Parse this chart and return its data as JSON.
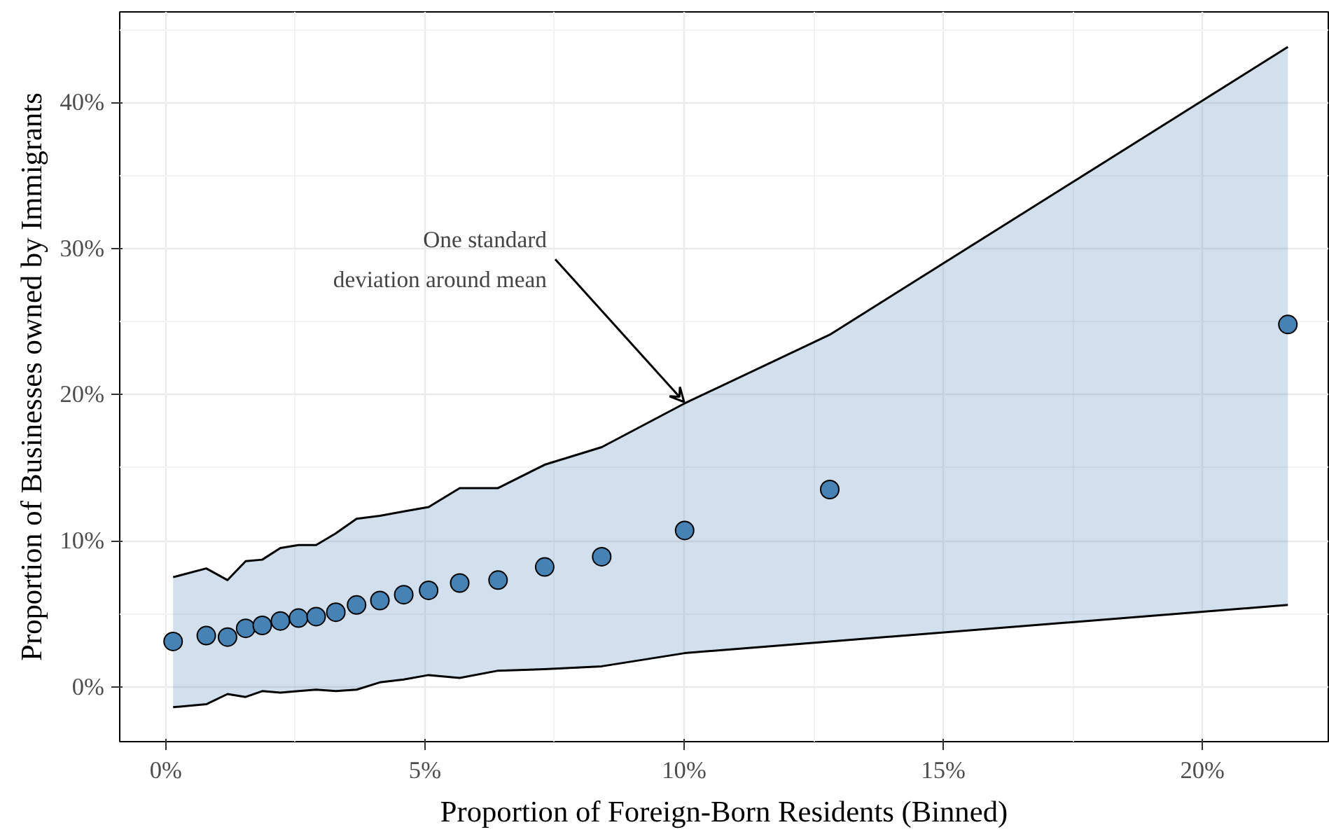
{
  "chart_data": {
    "type": "scatter",
    "xlabel": "Proportion of Foreign-Born Residents (Binned)",
    "ylabel": "Proportion of Businesses owned by Immigrants",
    "x": [
      0.14,
      0.78,
      1.19,
      1.54,
      1.86,
      2.21,
      2.56,
      2.9,
      3.28,
      3.68,
      4.13,
      4.59,
      5.07,
      5.67,
      6.41,
      7.31,
      8.41,
      10.01,
      12.81,
      21.65
    ],
    "series": [
      {
        "color": "#4682b4",
        "marker": "circle",
        "values": [
          3.1,
          3.5,
          3.4,
          4.0,
          4.2,
          4.5,
          4.7,
          4.8,
          5.1,
          5.6,
          5.9,
          6.3,
          6.6,
          7.1,
          7.3,
          8.2,
          8.9,
          10.7,
          13.5,
          24.8
        ],
        "upper": [
          7.5,
          8.1,
          7.3,
          8.6,
          8.7,
          9.5,
          9.7,
          9.7,
          10.5,
          11.5,
          11.7,
          12.0,
          12.3,
          13.6,
          13.6,
          15.2,
          16.4,
          19.4,
          24.1,
          43.8
        ],
        "lower": [
          -1.4,
          -1.2,
          -0.5,
          -0.7,
          -0.3,
          -0.4,
          -0.3,
          -0.2,
          -0.3,
          -0.2,
          0.3,
          0.5,
          0.8,
          0.6,
          1.1,
          1.2,
          1.4,
          2.3,
          3.1,
          5.6
        ]
      },
      {
        "type": "line",
        "color": "#000000",
        "values": [
          7.5,
          8.1,
          7.3,
          8.6,
          8.7,
          9.5,
          9.7,
          9.7,
          10.5,
          11.5,
          11.7,
          12.0,
          12.3,
          13.6,
          13.6,
          15.2,
          16.4,
          19.4,
          24.1,
          43.8
        ]
      },
      {
        "type": "line",
        "color": "#000000",
        "values": [
          -1.4,
          -1.2,
          -0.5,
          -0.7,
          -0.3,
          -0.4,
          -0.3,
          -0.2,
          -0.3,
          -0.2,
          0.3,
          0.5,
          0.8,
          0.6,
          1.1,
          1.2,
          1.4,
          2.3,
          3.1,
          5.6
        ]
      }
    ],
    "xlim": [
      -0.89,
      22.43
    ],
    "ylim": [
      -3.76,
      46.2
    ],
    "xticks": [
      {
        "value": 0,
        "label": "0%"
      },
      {
        "value": 5,
        "label": "5%"
      },
      {
        "value": 10,
        "label": "10%"
      },
      {
        "value": 15,
        "label": "15%"
      },
      {
        "value": 20,
        "label": "20%"
      }
    ],
    "yticks": [
      {
        "value": 0,
        "label": "0%"
      },
      {
        "value": 10,
        "label": "10%"
      },
      {
        "value": 20,
        "label": "20%"
      },
      {
        "value": 30,
        "label": "30%"
      },
      {
        "value": 40,
        "label": "40%"
      }
    ],
    "grid": true,
    "annotations": [
      {
        "text": "One standard\ndeviation around mean",
        "x": 10,
        "y": 19.4
      }
    ]
  }
}
